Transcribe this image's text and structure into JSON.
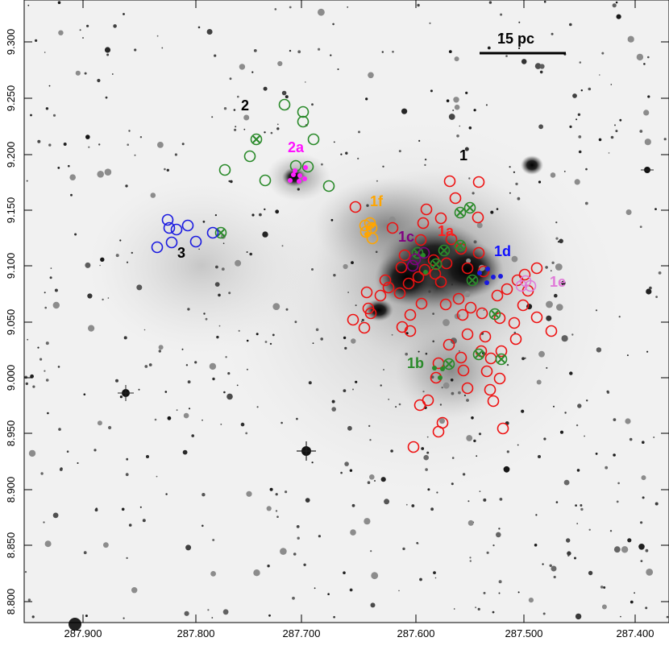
{
  "scale_bar": {
    "label": "15 pc"
  },
  "x_ticks": [
    "287.900",
    "287.800",
    "287.700",
    "287.600",
    "287.500",
    "287.400"
  ],
  "y_ticks": [
    "9.300",
    "9.250",
    "9.200",
    "9.150",
    "9.100",
    "9.050",
    "9.000",
    "8.950",
    "8.900",
    "8.850",
    "8.800"
  ],
  "regions": [
    {
      "label": "1",
      "color": "#000000"
    },
    {
      "label": "1a",
      "color": "#ff2020"
    },
    {
      "label": "1b",
      "color": "#2a8a2a"
    },
    {
      "label": "1c",
      "color": "#800080"
    },
    {
      "label": "1d",
      "color": "#1010ff"
    },
    {
      "label": "1e",
      "color": "#e07ad8"
    },
    {
      "label": "1f",
      "color": "#ffa500"
    },
    {
      "label": "2",
      "color": "#000000"
    },
    {
      "label": "2a",
      "color": "#ff10ff"
    },
    {
      "label": "3",
      "color": "#000000"
    }
  ],
  "colors": {
    "red_members": "#ee1111",
    "green_members": "#2a8a2a",
    "blue_members": "#1a1ae0",
    "magenta_members": "#ff20ff",
    "orange_members": "#ffa500",
    "background_sky": "#f2f2f2"
  }
}
